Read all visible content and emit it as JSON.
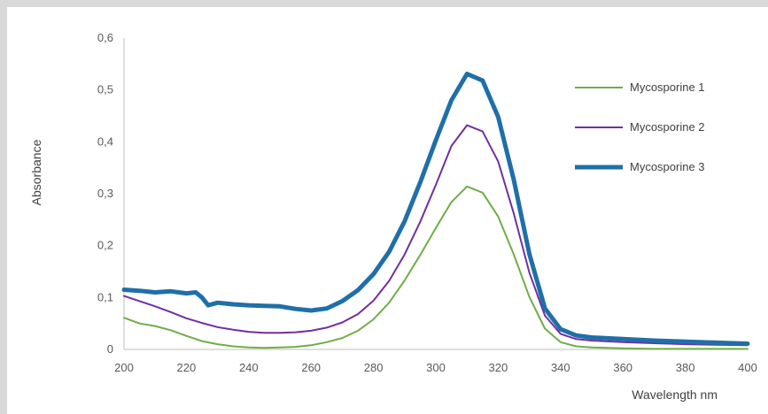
{
  "chart_data": {
    "type": "line",
    "title": "",
    "xlabel": "Wavelength nm",
    "ylabel": "Absorbance",
    "xlim": [
      200,
      400
    ],
    "ylim": [
      0,
      0.6
    ],
    "x_ticks": [
      "200",
      "220",
      "240",
      "260",
      "280",
      "300",
      "320",
      "340",
      "360",
      "380",
      "400"
    ],
    "y_ticks": [
      "0",
      "0,1",
      "0,2",
      "0,3",
      "0,4",
      "0,5",
      "0,6"
    ],
    "legend_position": "right",
    "grid": false,
    "series": [
      {
        "name": "Mycosporine 1",
        "color": "#70ad47",
        "points": [
          [
            200,
            0.061
          ],
          [
            205,
            0.05
          ],
          [
            210,
            0.045
          ],
          [
            215,
            0.037
          ],
          [
            220,
            0.026
          ],
          [
            225,
            0.016
          ],
          [
            230,
            0.01
          ],
          [
            235,
            0.006
          ],
          [
            240,
            0.004
          ],
          [
            245,
            0.003
          ],
          [
            250,
            0.004
          ],
          [
            255,
            0.005
          ],
          [
            260,
            0.008
          ],
          [
            265,
            0.014
          ],
          [
            270,
            0.022
          ],
          [
            275,
            0.036
          ],
          [
            280,
            0.058
          ],
          [
            285,
            0.09
          ],
          [
            290,
            0.133
          ],
          [
            295,
            0.182
          ],
          [
            300,
            0.234
          ],
          [
            305,
            0.284
          ],
          [
            310,
            0.314
          ],
          [
            315,
            0.302
          ],
          [
            320,
            0.256
          ],
          [
            325,
            0.183
          ],
          [
            330,
            0.101
          ],
          [
            335,
            0.04
          ],
          [
            340,
            0.014
          ],
          [
            345,
            0.006
          ],
          [
            350,
            0.004
          ],
          [
            360,
            0.002
          ],
          [
            370,
            0.001
          ],
          [
            380,
            0.001
          ],
          [
            390,
            0.001
          ],
          [
            400,
            0.001
          ]
        ]
      },
      {
        "name": "Mycosporine 2",
        "color": "#7030a0",
        "points": [
          [
            200,
            0.103
          ],
          [
            205,
            0.093
          ],
          [
            210,
            0.083
          ],
          [
            215,
            0.072
          ],
          [
            220,
            0.06
          ],
          [
            225,
            0.051
          ],
          [
            230,
            0.043
          ],
          [
            235,
            0.038
          ],
          [
            240,
            0.034
          ],
          [
            245,
            0.032
          ],
          [
            250,
            0.032
          ],
          [
            255,
            0.033
          ],
          [
            260,
            0.036
          ],
          [
            265,
            0.042
          ],
          [
            270,
            0.052
          ],
          [
            275,
            0.068
          ],
          [
            280,
            0.094
          ],
          [
            285,
            0.132
          ],
          [
            290,
            0.183
          ],
          [
            295,
            0.246
          ],
          [
            300,
            0.317
          ],
          [
            305,
            0.392
          ],
          [
            310,
            0.432
          ],
          [
            315,
            0.42
          ],
          [
            320,
            0.362
          ],
          [
            325,
            0.262
          ],
          [
            330,
            0.148
          ],
          [
            335,
            0.065
          ],
          [
            340,
            0.03
          ],
          [
            345,
            0.02
          ],
          [
            350,
            0.017
          ],
          [
            360,
            0.014
          ],
          [
            370,
            0.012
          ],
          [
            380,
            0.01
          ],
          [
            390,
            0.009
          ],
          [
            400,
            0.008
          ]
        ]
      },
      {
        "name": "Mycosporine 3",
        "color": "#1f6fa8",
        "points": [
          [
            200,
            0.115
          ],
          [
            205,
            0.113
          ],
          [
            210,
            0.11
          ],
          [
            215,
            0.112
          ],
          [
            220,
            0.108
          ],
          [
            223,
            0.11
          ],
          [
            225,
            0.1
          ],
          [
            227,
            0.085
          ],
          [
            230,
            0.09
          ],
          [
            235,
            0.087
          ],
          [
            240,
            0.085
          ],
          [
            245,
            0.084
          ],
          [
            250,
            0.083
          ],
          [
            255,
            0.078
          ],
          [
            260,
            0.075
          ],
          [
            265,
            0.079
          ],
          [
            270,
            0.093
          ],
          [
            275,
            0.114
          ],
          [
            280,
            0.145
          ],
          [
            285,
            0.188
          ],
          [
            290,
            0.247
          ],
          [
            295,
            0.322
          ],
          [
            300,
            0.403
          ],
          [
            305,
            0.48
          ],
          [
            310,
            0.531
          ],
          [
            315,
            0.518
          ],
          [
            320,
            0.448
          ],
          [
            325,
            0.327
          ],
          [
            330,
            0.184
          ],
          [
            335,
            0.079
          ],
          [
            340,
            0.039
          ],
          [
            345,
            0.027
          ],
          [
            350,
            0.023
          ],
          [
            360,
            0.02
          ],
          [
            370,
            0.017
          ],
          [
            380,
            0.015
          ],
          [
            390,
            0.013
          ],
          [
            400,
            0.011
          ]
        ]
      }
    ]
  }
}
